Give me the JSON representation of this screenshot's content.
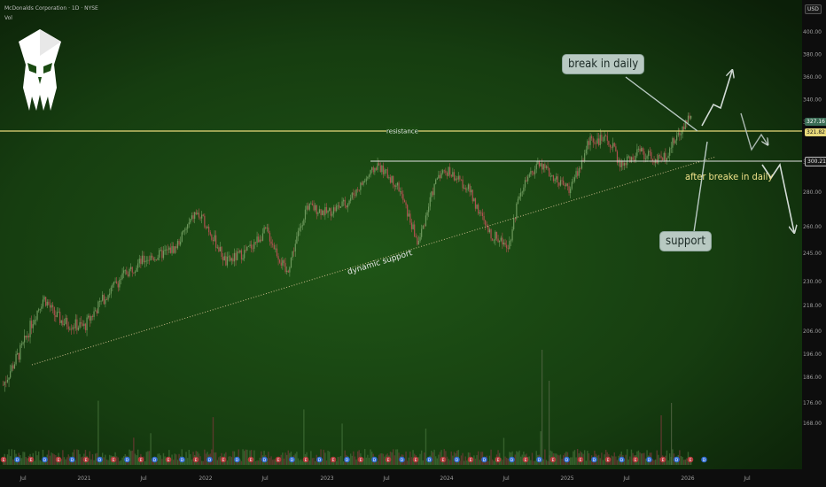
{
  "header": {
    "title": "McDonalds Corporation · 1D · NYSE",
    "sub": "Vol"
  },
  "currency": "USD",
  "colors": {
    "up": "#6f9a5e",
    "down": "#b05050",
    "resistance": "#e8d97a",
    "support": "#d9d9d9",
    "dynamic": "#c9b98a",
    "callout": "#b8c9c2",
    "bg_green": "#1a4a12"
  },
  "price_labels": {
    "current": "327.16",
    "resistance": "321.82",
    "support": "300.21"
  },
  "annotations": {
    "resistance": "resistance",
    "dynamic_support": "dynamic support",
    "after_break": "after breake in daily",
    "break_daily": "break in daily",
    "support": "support"
  },
  "chart_data": {
    "type": "candlestick",
    "title": "McDonalds Corporation · 1D · NYSE",
    "ylabel": "USD",
    "ylim": [
      165,
      405
    ],
    "y_ticks": [
      "400.00",
      "380.00",
      "360.00",
      "340.00",
      "320.00",
      "300.00",
      "280.00",
      "260.00",
      "245.00",
      "230.00",
      "218.00",
      "206.00",
      "196.00",
      "186.00",
      "176.00",
      "168.00"
    ],
    "x_ticks": [
      "Jul",
      "2021",
      "Jul",
      "2022",
      "Jul",
      "2023",
      "Jul",
      "2024",
      "Jul",
      "2025",
      "Jul",
      "2026",
      "Jul"
    ],
    "resistance_level": 321.82,
    "support_level": 300.21,
    "last_price": 327.16,
    "price_path": [
      {
        "t": "2020-05",
        "v": 183
      },
      {
        "t": "2020-07",
        "v": 200
      },
      {
        "t": "2020-08",
        "v": 212
      },
      {
        "t": "2020-09",
        "v": 222
      },
      {
        "t": "2020-10",
        "v": 214
      },
      {
        "t": "2020-11",
        "v": 210
      },
      {
        "t": "2021-01",
        "v": 208
      },
      {
        "t": "2021-03",
        "v": 222
      },
      {
        "t": "2021-05",
        "v": 234
      },
      {
        "t": "2021-07",
        "v": 242
      },
      {
        "t": "2021-08",
        "v": 243
      },
      {
        "t": "2021-10",
        "v": 248
      },
      {
        "t": "2021-12",
        "v": 268
      },
      {
        "t": "2022-01",
        "v": 262
      },
      {
        "t": "2022-03",
        "v": 240
      },
      {
        "t": "2022-05",
        "v": 246
      },
      {
        "t": "2022-07",
        "v": 258
      },
      {
        "t": "2022-09",
        "v": 234
      },
      {
        "t": "2022-11",
        "v": 272
      },
      {
        "t": "2023-01",
        "v": 268
      },
      {
        "t": "2023-03",
        "v": 274
      },
      {
        "t": "2023-05",
        "v": 290
      },
      {
        "t": "2023-06",
        "v": 298
      },
      {
        "t": "2023-08",
        "v": 284
      },
      {
        "t": "2023-10",
        "v": 250
      },
      {
        "t": "2023-12",
        "v": 292
      },
      {
        "t": "2024-01",
        "v": 294
      },
      {
        "t": "2024-03",
        "v": 282
      },
      {
        "t": "2024-05",
        "v": 256
      },
      {
        "t": "2024-07",
        "v": 250
      },
      {
        "t": "2024-08",
        "v": 280
      },
      {
        "t": "2024-10",
        "v": 300
      },
      {
        "t": "2024-11",
        "v": 292
      },
      {
        "t": "2025-01",
        "v": 282
      },
      {
        "t": "2025-03",
        "v": 312
      },
      {
        "t": "2025-05",
        "v": 310
      },
      {
        "t": "2025-06",
        "v": 298
      },
      {
        "t": "2025-08",
        "v": 305
      },
      {
        "t": "2025-10",
        "v": 300
      },
      {
        "t": "2025-12",
        "v": 316
      },
      {
        "t": "2026-01",
        "v": 327
      }
    ]
  }
}
